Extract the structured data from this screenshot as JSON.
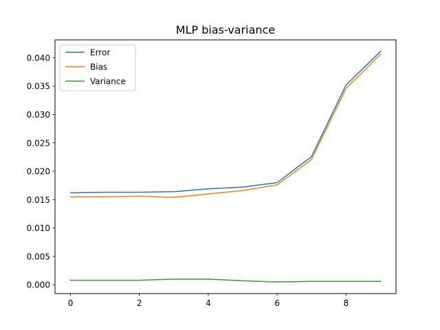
{
  "chart_data": {
    "type": "line",
    "title": "MLP bias-variance",
    "xlabel": "",
    "ylabel": "",
    "x": [
      0,
      1,
      2,
      3,
      4,
      5,
      6,
      7,
      8,
      9
    ],
    "xlim": [
      -0.45,
      9.45
    ],
    "ylim": [
      -0.00155,
      0.04314
    ],
    "xticks": [
      0,
      2,
      4,
      6,
      8
    ],
    "yticks": [
      0.0,
      0.005,
      0.01,
      0.015,
      0.02,
      0.025,
      0.03,
      0.035,
      0.04
    ],
    "xtick_labels": [
      "0",
      "2",
      "4",
      "6",
      "8"
    ],
    "ytick_labels": [
      "0.000",
      "0.005",
      "0.010",
      "0.015",
      "0.020",
      "0.025",
      "0.030",
      "0.035",
      "0.040"
    ],
    "grid": false,
    "legend_position": "top-left",
    "series": [
      {
        "name": "Error",
        "color": "#1f77b4",
        "values": [
          0.0162,
          0.0163,
          0.0163,
          0.0164,
          0.0169,
          0.0172,
          0.018,
          0.0226,
          0.0352,
          0.0411
        ]
      },
      {
        "name": "Bias",
        "color": "#ff7f0e",
        "values": [
          0.0155,
          0.0155,
          0.0156,
          0.0154,
          0.016,
          0.0166,
          0.0176,
          0.0221,
          0.0346,
          0.0406
        ]
      },
      {
        "name": "Variance",
        "color": "#2ca02c",
        "values": [
          0.0008,
          0.0008,
          0.0008,
          0.001,
          0.001,
          0.0007,
          0.0005,
          0.0006,
          0.0006,
          0.0006
        ]
      }
    ]
  }
}
